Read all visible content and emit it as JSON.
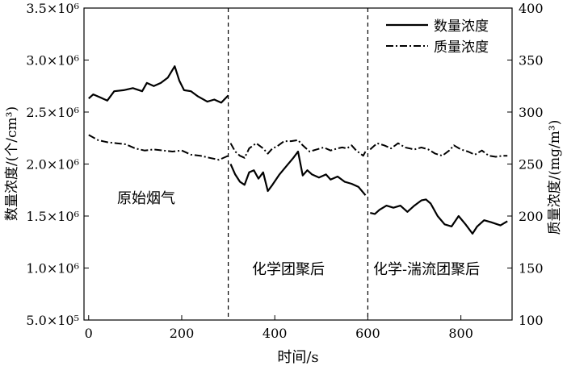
{
  "chart_data": {
    "type": "line",
    "x_axis": {
      "label": "时间/s",
      "range": [
        -10,
        910
      ],
      "ticks": [
        0,
        200,
        400,
        600,
        800
      ]
    },
    "y_left": {
      "label": "数量浓度/(个/cm³)",
      "range": [
        500000,
        3500000
      ],
      "ticks": [
        500000,
        1000000,
        1500000,
        2000000,
        2500000,
        3000000,
        3500000
      ],
      "tick_labels": [
        "5.0×10⁵",
        "1.0×10⁶",
        "1.5×10⁶",
        "2.0×10⁶",
        "2.5×10⁶",
        "3.0×10⁶",
        "3.5×10⁶"
      ]
    },
    "y_right": {
      "label": "质量浓度/(mg/m³)",
      "range": [
        100,
        400
      ],
      "ticks": [
        100,
        150,
        200,
        250,
        300,
        350,
        400
      ]
    },
    "series": [
      {
        "name": "数量浓度",
        "axis": "left",
        "style": "solid",
        "segments": [
          [
            [
              0,
              2630000
            ],
            [
              10,
              2670000
            ],
            [
              25,
              2640000
            ],
            [
              40,
              2610000
            ],
            [
              55,
              2700000
            ],
            [
              75,
              2710000
            ],
            [
              95,
              2730000
            ],
            [
              115,
              2700000
            ],
            [
              125,
              2780000
            ],
            [
              140,
              2750000
            ],
            [
              155,
              2780000
            ],
            [
              170,
              2830000
            ],
            [
              185,
              2940000
            ],
            [
              195,
              2800000
            ],
            [
              205,
              2710000
            ],
            [
              220,
              2700000
            ],
            [
              235,
              2650000
            ],
            [
              255,
              2600000
            ],
            [
              270,
              2620000
            ],
            [
              285,
              2590000
            ],
            [
              300,
              2660000
            ]
          ],
          [
            [
              305,
              2000000
            ],
            [
              315,
              1900000
            ],
            [
              325,
              1830000
            ],
            [
              335,
              1800000
            ],
            [
              345,
              1920000
            ],
            [
              355,
              1940000
            ],
            [
              365,
              1860000
            ],
            [
              375,
              1920000
            ],
            [
              385,
              1740000
            ],
            [
              395,
              1800000
            ],
            [
              410,
              1900000
            ],
            [
              425,
              1980000
            ],
            [
              440,
              2060000
            ],
            [
              450,
              2120000
            ],
            [
              460,
              1890000
            ],
            [
              470,
              1940000
            ],
            [
              480,
              1900000
            ],
            [
              495,
              1870000
            ],
            [
              510,
              1900000
            ],
            [
              520,
              1850000
            ],
            [
              535,
              1880000
            ],
            [
              550,
              1830000
            ],
            [
              565,
              1810000
            ],
            [
              580,
              1780000
            ],
            [
              595,
              1700000
            ]
          ],
          [
            [
              605,
              1530000
            ],
            [
              615,
              1520000
            ],
            [
              625,
              1560000
            ],
            [
              640,
              1600000
            ],
            [
              655,
              1580000
            ],
            [
              670,
              1600000
            ],
            [
              685,
              1540000
            ],
            [
              700,
              1600000
            ],
            [
              715,
              1650000
            ],
            [
              725,
              1660000
            ],
            [
              735,
              1620000
            ],
            [
              750,
              1500000
            ],
            [
              765,
              1420000
            ],
            [
              780,
              1400000
            ],
            [
              795,
              1500000
            ],
            [
              810,
              1420000
            ],
            [
              825,
              1330000
            ],
            [
              835,
              1400000
            ],
            [
              850,
              1460000
            ],
            [
              865,
              1440000
            ],
            [
              885,
              1410000
            ],
            [
              900,
              1450000
            ]
          ]
        ]
      },
      {
        "name": "质量浓度",
        "axis": "right",
        "style": "dashdot",
        "segments": [
          [
            [
              0,
              278
            ],
            [
              20,
              273
            ],
            [
              40,
              271
            ],
            [
              60,
              270
            ],
            [
              80,
              269
            ],
            [
              100,
              265
            ],
            [
              120,
              263
            ],
            [
              140,
              264
            ],
            [
              160,
              263
            ],
            [
              180,
              262
            ],
            [
              200,
              263
            ],
            [
              220,
              259
            ],
            [
              240,
              258
            ],
            [
              260,
              256
            ],
            [
              280,
              254
            ],
            [
              300,
              258
            ]
          ],
          [
            [
              305,
              270
            ],
            [
              315,
              262
            ],
            [
              325,
              258
            ],
            [
              335,
              256
            ],
            [
              345,
              265
            ],
            [
              360,
              270
            ],
            [
              375,
              265
            ],
            [
              385,
              260
            ],
            [
              395,
              265
            ],
            [
              405,
              267
            ],
            [
              420,
              272
            ],
            [
              435,
              272
            ],
            [
              450,
              273
            ],
            [
              460,
              268
            ],
            [
              475,
              262
            ],
            [
              490,
              264
            ],
            [
              505,
              266
            ],
            [
              520,
              263
            ],
            [
              535,
              265
            ],
            [
              545,
              266
            ],
            [
              555,
              265
            ],
            [
              565,
              268
            ],
            [
              575,
              263
            ],
            [
              590,
              258
            ],
            [
              595,
              262
            ]
          ],
          [
            [
              605,
              264
            ],
            [
              620,
              270
            ],
            [
              635,
              268
            ],
            [
              650,
              265
            ],
            [
              665,
              270
            ],
            [
              680,
              266
            ],
            [
              700,
              264
            ],
            [
              715,
              266
            ],
            [
              730,
              264
            ],
            [
              745,
              260
            ],
            [
              760,
              258
            ],
            [
              775,
              263
            ],
            [
              785,
              268
            ],
            [
              800,
              264
            ],
            [
              815,
              262
            ],
            [
              830,
              259
            ],
            [
              845,
              263
            ],
            [
              860,
              258
            ],
            [
              875,
              257
            ],
            [
              890,
              258
            ],
            [
              900,
              258
            ]
          ]
        ]
      }
    ],
    "stage_dividers": [
      300,
      600
    ],
    "annotations": [
      "原始烟气",
      "化学团聚后",
      "化学-湍流团聚后"
    ],
    "legend": {
      "position": "top-right",
      "entries": [
        "数量浓度",
        "质量浓度"
      ]
    }
  }
}
